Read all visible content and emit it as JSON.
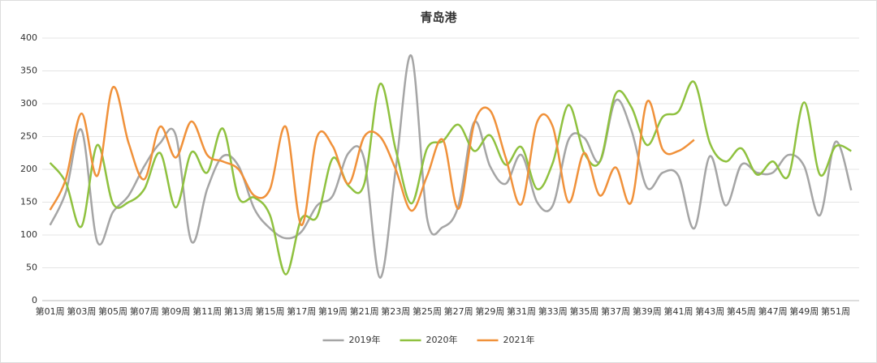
{
  "chart_data": {
    "type": "line",
    "title": "青岛港",
    "categories": [
      "第01周",
      null,
      "第03周",
      null,
      "第05周",
      null,
      "第07周",
      null,
      "第09周",
      null,
      "第11周",
      null,
      "第13周",
      null,
      "第15周",
      null,
      "第17周",
      null,
      "第19周",
      null,
      "第21周",
      null,
      "第23周",
      null,
      "第25周",
      null,
      "第27周",
      null,
      "第29周",
      null,
      "第31周",
      null,
      "第33周",
      null,
      "第35周",
      null,
      "第37周",
      null,
      "第39周",
      null,
      "第41周",
      null,
      "第43周",
      null,
      "第45周",
      null,
      "第47周",
      null,
      "第49周",
      null,
      "第51周",
      null
    ],
    "series": [
      {
        "name": "2019年",
        "color": "#a5a5a5",
        "values": [
          115,
          165,
          260,
          90,
          135,
          160,
          205,
          240,
          252,
          90,
          170,
          220,
          205,
          140,
          110,
          95,
          105,
          145,
          160,
          225,
          215,
          35,
          200,
          373,
          125,
          112,
          145,
          272,
          205,
          178,
          222,
          150,
          145,
          245,
          248,
          212,
          305,
          260,
          172,
          195,
          190,
          110,
          220,
          145,
          207,
          195,
          195,
          222,
          205,
          130,
          242,
          168
        ]
      },
      {
        "name": "2020年",
        "color": "#8fc13f",
        "values": [
          210,
          180,
          113,
          237,
          148,
          150,
          170,
          225,
          142,
          226,
          195,
          262,
          157,
          157,
          130,
          40,
          125,
          128,
          217,
          175,
          178,
          330,
          230,
          148,
          232,
          243,
          268,
          228,
          252,
          207,
          234,
          170,
          210,
          298,
          225,
          212,
          315,
          295,
          237,
          280,
          288,
          333,
          240,
          212,
          232,
          192,
          212,
          190,
          302,
          192,
          235,
          228
        ]
      },
      {
        "name": "2021年",
        "color": "#f0913a",
        "values": [
          138,
          185,
          285,
          190,
          325,
          240,
          185,
          265,
          218,
          273,
          222,
          212,
          200,
          160,
          170,
          265,
          115,
          250,
          235,
          178,
          250,
          250,
          200,
          137,
          190,
          245,
          140,
          270,
          290,
          218,
          147,
          272,
          265,
          150,
          225,
          160,
          203,
          150,
          303,
          230,
          228,
          245,
          null,
          null,
          null,
          null,
          null,
          null,
          null,
          null,
          null,
          null
        ]
      }
    ],
    "ylim": [
      0,
      400
    ],
    "yticks": [
      0,
      50,
      100,
      150,
      200,
      250,
      300,
      350,
      400
    ],
    "grid": true,
    "legend": "bottom"
  }
}
